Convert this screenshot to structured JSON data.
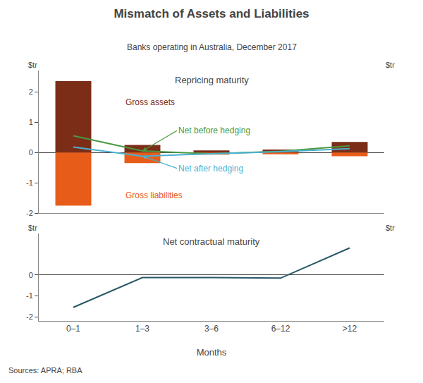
{
  "title": "Mismatch of Assets and Liabilities",
  "subtitle": "Banks operating in Australia, December 2017",
  "source": "Sources: APRA; RBA",
  "chart_data": [
    {
      "type": "bar",
      "title": "Repricing maturity",
      "categories": [
        "0–1",
        "1–3",
        "3–6",
        "6–12",
        ">12"
      ],
      "ylabel": "$tr",
      "y2label": "$tr",
      "ylim": [
        -2.0,
        2.7
      ],
      "yticks": [
        -2,
        -1,
        0,
        1,
        2
      ],
      "y2lim": [
        -2.0,
        2.7
      ],
      "y2ticks": [
        -2,
        -1,
        0,
        1,
        2
      ],
      "grid": true,
      "tick_labels": "y",
      "series": [
        {
          "name": "Gross assets",
          "type": "bar",
          "color": "#7B2D18",
          "values": [
            2.35,
            0.25,
            0.07,
            0.1,
            0.35
          ]
        },
        {
          "name": "Gross liabilities",
          "type": "bar",
          "color": "#E85C1A",
          "values": [
            -1.75,
            -0.35,
            -0.07,
            -0.06,
            -0.12
          ]
        },
        {
          "name": "Net before hedging",
          "type": "line",
          "color": "#4A9840",
          "values": [
            0.55,
            0.05,
            -0.04,
            0.04,
            0.22
          ]
        },
        {
          "name": "Net after hedging",
          "type": "line",
          "color": "#4BB0D0",
          "values": [
            0.18,
            -0.12,
            -0.04,
            0.03,
            0.13
          ]
        }
      ]
    },
    {
      "type": "line",
      "title": "Net contractual maturity",
      "categories": [
        "0–1",
        "1–3",
        "3–6",
        "6–12",
        ">12"
      ],
      "xlabel": "Months",
      "ylabel": "$tr",
      "y2label": "$tr",
      "ylim": [
        -2.2,
        2.0
      ],
      "yticks": [
        -2,
        -1,
        0
      ],
      "y2lim": [
        -2.2,
        2.0
      ],
      "y2ticks": [
        -2,
        -1,
        0
      ],
      "grid": true,
      "series": [
        {
          "type": "line",
          "color": "#2A5868",
          "values": [
            -1.55,
            -0.12,
            -0.12,
            -0.15,
            1.3
          ]
        }
      ]
    }
  ]
}
